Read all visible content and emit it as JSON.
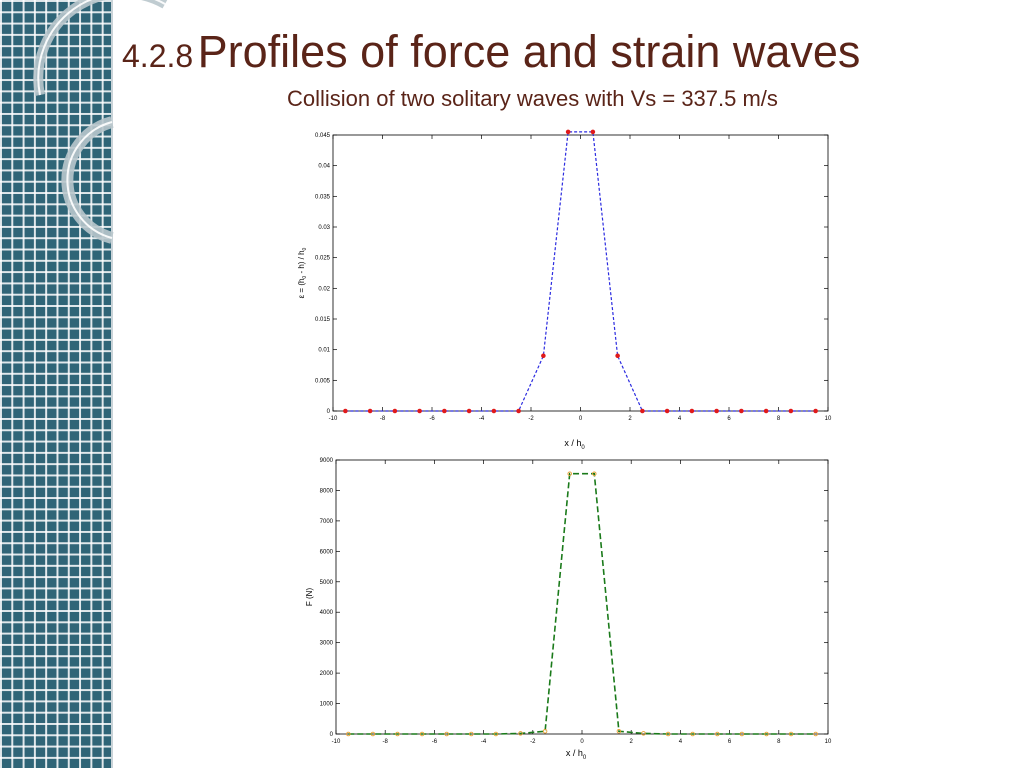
{
  "slide": {
    "title_number": "4.2.8",
    "title_text": "Profiles of force and strain waves",
    "subtitle": "Collision of two solitary waves with Vs = 337.5 m/s"
  },
  "colors": {
    "sidebar": "#2f6577",
    "title": "#5a2418",
    "strain_line": "#2a2ae0",
    "strain_marker": "#e01a1a",
    "force_line": "#1a7a1a",
    "force_marker": "#e8a030"
  },
  "chart_data": [
    {
      "type": "line",
      "title": "",
      "xlabel": "x / h",
      "xlabel_sub": "0",
      "ylabel": "ε = (h",
      "ylabel_sub1": "0",
      "ylabel_mid": " - h) / h",
      "ylabel_sub2": "0",
      "xlim": [
        -10,
        10
      ],
      "ylim": [
        0,
        0.045
      ],
      "xticks": [
        -10,
        -8,
        -6,
        -4,
        -2,
        0,
        2,
        4,
        6,
        8,
        10
      ],
      "xtick_labels": [
        "-10",
        "-8",
        "-6",
        "-4",
        "-2",
        "0",
        "2",
        "4",
        "6",
        "8",
        "10"
      ],
      "yticks": [
        0,
        0.005,
        0.01,
        0.015,
        0.02,
        0.025,
        0.03,
        0.035,
        0.04,
        0.045
      ],
      "ytick_labels": [
        "0",
        "0.005",
        "0.01",
        "0.015",
        "0.02",
        "0.025",
        "0.03",
        "0.035",
        "0.04",
        "0.045"
      ],
      "grid": false,
      "series": [
        {
          "x": [
            -9.5,
            -8.5,
            -7.5,
            -6.5,
            -5.5,
            -4.5,
            -3.5,
            -2.5,
            -1.5,
            -0.5,
            0.5,
            1.5,
            2.5,
            3.5,
            4.5,
            5.5,
            6.5,
            7.5,
            8.5,
            9.5
          ],
          "y": [
            0,
            0,
            0,
            0,
            0,
            0,
            0,
            0,
            0.009,
            0.0455,
            0.0455,
            0.009,
            0,
            0,
            0,
            0,
            0,
            0,
            0,
            0
          ]
        }
      ]
    },
    {
      "type": "line",
      "title": "",
      "xlabel": "x / h",
      "xlabel_sub": "0",
      "ylabel": "F  (N)",
      "xlim": [
        -10,
        10
      ],
      "ylim": [
        0,
        9000
      ],
      "xticks": [
        -10,
        -8,
        -6,
        -4,
        -2,
        0,
        2,
        4,
        6,
        8,
        10
      ],
      "xtick_labels": [
        "-10",
        "-8",
        "-6",
        "-4",
        "-2",
        "0",
        "2",
        "4",
        "6",
        "8",
        "10"
      ],
      "yticks": [
        0,
        1000,
        2000,
        3000,
        4000,
        5000,
        6000,
        7000,
        8000,
        9000
      ],
      "ytick_labels": [
        "0",
        "1000",
        "2000",
        "3000",
        "4000",
        "5000",
        "6000",
        "7000",
        "8000",
        "9000"
      ],
      "grid": false,
      "series": [
        {
          "x": [
            -9.5,
            -8.5,
            -7.5,
            -6.5,
            -5.5,
            -4.5,
            -3.5,
            -2.5,
            -1.5,
            -0.5,
            0.5,
            1.5,
            2.5,
            3.5,
            4.5,
            5.5,
            6.5,
            7.5,
            8.5,
            9.5
          ],
          "y": [
            0,
            0,
            0,
            0,
            0,
            0,
            0,
            20,
            90,
            8550,
            8550,
            90,
            20,
            0,
            0,
            0,
            0,
            0,
            0,
            0
          ]
        }
      ]
    }
  ]
}
